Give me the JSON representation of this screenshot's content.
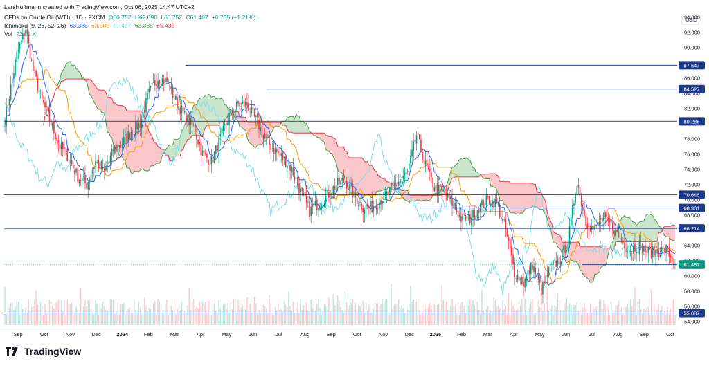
{
  "header": {
    "credit": "LarsHoffmann created with TradingView.com, Oct 06, 2025 14:47 UTC+2",
    "symbol": "CFDs on Crude Oil (WTI) · 1D · FXCM",
    "ohlc": {
      "o": "O60.752",
      "h": "H62.098",
      "l": "L60.752",
      "c": "C61.487",
      "chg": "+0.735 (+1.21%)"
    },
    "ichimoku_label": "Ichimoku (9, 26, 52, 26)",
    "ichimoku_values": [
      "63.388",
      "63.388",
      "61.487",
      "63.388",
      "65.438"
    ],
    "vol_label": "Vol",
    "vol_value": "22.12 K"
  },
  "colors": {
    "up": "#089981",
    "down": "#f23645",
    "tenkan": "#2962ff",
    "kijun": "#ff9800",
    "chikou": "#80deea",
    "spanA": "#43a047",
    "spanB": "#f23645",
    "cloudUp": "rgba(67,160,71,0.28)",
    "cloudDown": "rgba(242,54,69,0.28)",
    "hline": "#1e3a8a",
    "label_blue": "#1e3a8a",
    "label_green": "#089981"
  },
  "chart_data": {
    "type": "candlestick",
    "currency": "USD",
    "ylim": [
      53.5,
      95.5
    ],
    "y_ticks": [
      54,
      56,
      58,
      60,
      62,
      64,
      66,
      68,
      70,
      72,
      74,
      76,
      78,
      80,
      82,
      84,
      86,
      88,
      90,
      92,
      94
    ],
    "x_ticks": [
      "Sep",
      "Oct",
      "Nov",
      "Dec",
      "2024",
      "Feb",
      "Mar",
      "Apr",
      "May",
      "Jun",
      "Jul",
      "Aug",
      "Sep",
      "Oct",
      "Nov",
      "Dec",
      "2025",
      "Feb",
      "Mar",
      "Apr",
      "May",
      "Jun",
      "Jul",
      "Aug",
      "Sep",
      "Oct"
    ],
    "bold_x_ticks": [
      "2024",
      "2025"
    ],
    "close_anchors": [
      [
        0,
        80.5
      ],
      [
        8,
        89.0
      ],
      [
        14,
        92.5
      ],
      [
        19,
        87.0
      ],
      [
        25,
        83.0
      ],
      [
        31,
        80.0
      ],
      [
        37,
        77.0
      ],
      [
        43,
        75.5
      ],
      [
        49,
        73.0
      ],
      [
        55,
        72.0
      ],
      [
        61,
        75.0
      ],
      [
        67,
        73.5
      ],
      [
        73,
        76.5
      ],
      [
        79,
        77.5
      ],
      [
        85,
        79.0
      ],
      [
        91,
        80.0
      ],
      [
        97,
        84.0
      ],
      [
        103,
        86.0
      ],
      [
        109,
        85.5
      ],
      [
        115,
        83.0
      ],
      [
        121,
        81.0
      ],
      [
        127,
        79.5
      ],
      [
        133,
        76.0
      ],
      [
        139,
        75.0
      ],
      [
        145,
        78.0
      ],
      [
        151,
        81.0
      ],
      [
        157,
        82.5
      ],
      [
        163,
        82.5
      ],
      [
        169,
        80.5
      ],
      [
        175,
        78.0
      ],
      [
        181,
        76.5
      ],
      [
        187,
        75.5
      ],
      [
        193,
        74.0
      ],
      [
        199,
        71.0
      ],
      [
        205,
        68.5
      ],
      [
        211,
        69.5
      ],
      [
        217,
        70.5
      ],
      [
        223,
        72.0
      ],
      [
        229,
        72.5
      ],
      [
        235,
        70.5
      ],
      [
        241,
        69.0
      ],
      [
        247,
        69.0
      ],
      [
        253,
        70.0
      ],
      [
        259,
        71.0
      ],
      [
        265,
        72.5
      ],
      [
        271,
        73.5
      ],
      [
        277,
        78.5
      ],
      [
        283,
        74.5
      ],
      [
        289,
        71.5
      ],
      [
        295,
        71.0
      ],
      [
        301,
        69.5
      ],
      [
        307,
        67.5
      ],
      [
        313,
        67.5
      ],
      [
        319,
        69.0
      ],
      [
        325,
        70.0
      ],
      [
        331,
        69.5
      ],
      [
        337,
        66.0
      ],
      [
        343,
        60.5
      ],
      [
        349,
        59.0
      ],
      [
        355,
        61.5
      ],
      [
        361,
        58.0
      ],
      [
        367,
        61.0
      ],
      [
        373,
        62.0
      ],
      [
        379,
        64.5
      ],
      [
        385,
        72.5
      ],
      [
        391,
        67.0
      ],
      [
        397,
        66.0
      ],
      [
        403,
        67.5
      ],
      [
        409,
        66.5
      ],
      [
        415,
        64.5
      ],
      [
        421,
        63.5
      ],
      [
        427,
        64.0
      ],
      [
        433,
        63.0
      ],
      [
        439,
        63.2
      ],
      [
        445,
        63.5
      ],
      [
        451,
        61.5
      ]
    ],
    "volume_max": "45K",
    "horizontal_levels": [
      {
        "price": 87.647,
        "label": "87.647",
        "color": "#1e3a8a",
        "x_start_frac": 0.27
      },
      {
        "price": 84.527,
        "label": "84.527",
        "color": "#1e3a8a",
        "x_start_frac": 0.39
      },
      {
        "price": 80.286,
        "label": "80.286",
        "color": "#1e3a8a",
        "x_start_frac": 0.0
      },
      {
        "price": 70.646,
        "label": "70.646",
        "color": "#1e3a8a",
        "x_start_frac": 0.0
      },
      {
        "price": 68.901,
        "label": "68.901",
        "color": "#1e3a8a",
        "x_start_frac": 0.62
      },
      {
        "price": 66.214,
        "label": "66.214",
        "color": "#1e3a8a",
        "x_start_frac": 0.0
      },
      {
        "price": 61.442,
        "label": "61.442",
        "color": "#1e3a8a",
        "x_start_frac": 0.86
      },
      {
        "price": 55.087,
        "label": "55.087",
        "color": "#1e3a8a",
        "x_start_frac": 0.0
      }
    ],
    "last_price": {
      "price": 61.487,
      "label": "61.487",
      "color": "#089981"
    }
  },
  "branding": {
    "name": "TradingView"
  }
}
